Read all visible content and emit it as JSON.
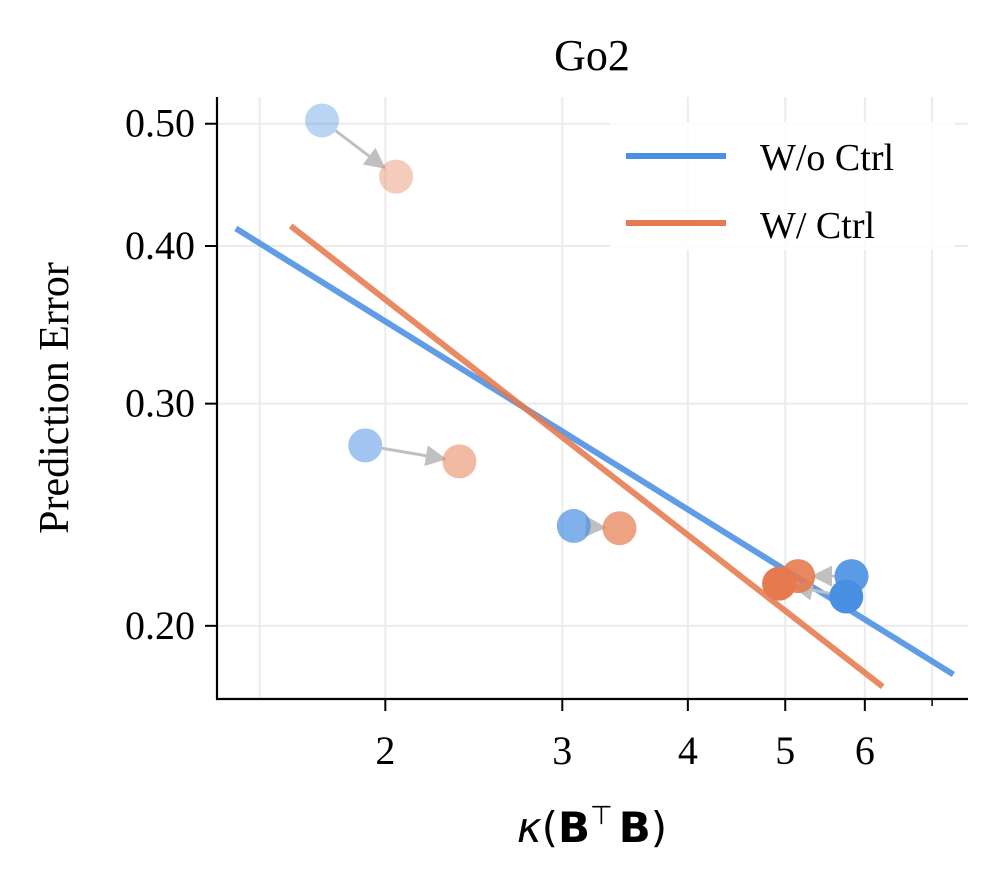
{
  "chart_data": {
    "type": "scatter",
    "title": "Go2",
    "xlabel_parts": {
      "kappa": "κ",
      "open": "(",
      "b1": "B",
      "transpose": "⊤",
      "b2": "B",
      "close": ")"
    },
    "ylabel": "Prediction Error",
    "x_scale": "log",
    "y_scale": "log",
    "xlim": [
      1.36,
      7.6
    ],
    "ylim": [
      0.175,
      0.525
    ],
    "x_ticks": [
      2,
      3,
      4,
      5,
      6
    ],
    "x_tick_labels": [
      "2",
      "3",
      "4",
      "5",
      "6"
    ],
    "y_ticks": [
      0.2,
      0.3,
      0.4,
      0.5
    ],
    "y_tick_labels": [
      "0.20",
      "0.30",
      "0.40",
      "0.50"
    ],
    "grid": true,
    "legend_position": "top-right",
    "colors": {
      "wo_ctrl": "#4a90e2",
      "w_ctrl": "#e57a4f",
      "arrow": "#c0c0c0",
      "axis": "#000000",
      "grid": "#ebebeb"
    },
    "series": [
      {
        "name": "W/o Ctrl",
        "color": "#4a90e2",
        "fit_line": {
          "x": [
            1.42,
            7.35
          ],
          "y": [
            0.413,
            0.183
          ]
        },
        "points": [
          {
            "x": 1.73,
            "y": 0.503,
            "alpha": 0.38
          },
          {
            "x": 1.91,
            "y": 0.278,
            "alpha": 0.52
          },
          {
            "x": 3.08,
            "y": 0.24,
            "alpha": 0.7
          },
          {
            "x": 5.82,
            "y": 0.219,
            "alpha": 0.9
          },
          {
            "x": 5.75,
            "y": 0.211,
            "alpha": 1.0
          }
        ]
      },
      {
        "name": "W/ Ctrl",
        "color": "#e57a4f",
        "fit_line": {
          "x": [
            1.61,
            6.25
          ],
          "y": [
            0.415,
            0.179
          ]
        },
        "points": [
          {
            "x": 2.05,
            "y": 0.454,
            "alpha": 0.38
          },
          {
            "x": 2.37,
            "y": 0.27,
            "alpha": 0.52
          },
          {
            "x": 3.42,
            "y": 0.239,
            "alpha": 0.7
          },
          {
            "x": 5.15,
            "y": 0.219,
            "alpha": 0.9
          },
          {
            "x": 4.93,
            "y": 0.216,
            "alpha": 1.0
          }
        ]
      }
    ],
    "arrows": [
      {
        "from": [
          1.73,
          0.503
        ],
        "to": [
          2.05,
          0.454
        ]
      },
      {
        "from": [
          1.91,
          0.278
        ],
        "to": [
          2.37,
          0.27
        ]
      },
      {
        "from": [
          3.08,
          0.24
        ],
        "to": [
          3.42,
          0.239
        ]
      },
      {
        "from": [
          5.82,
          0.219
        ],
        "to": [
          5.15,
          0.219
        ]
      },
      {
        "from": [
          5.75,
          0.211
        ],
        "to": [
          4.93,
          0.216
        ]
      }
    ]
  }
}
